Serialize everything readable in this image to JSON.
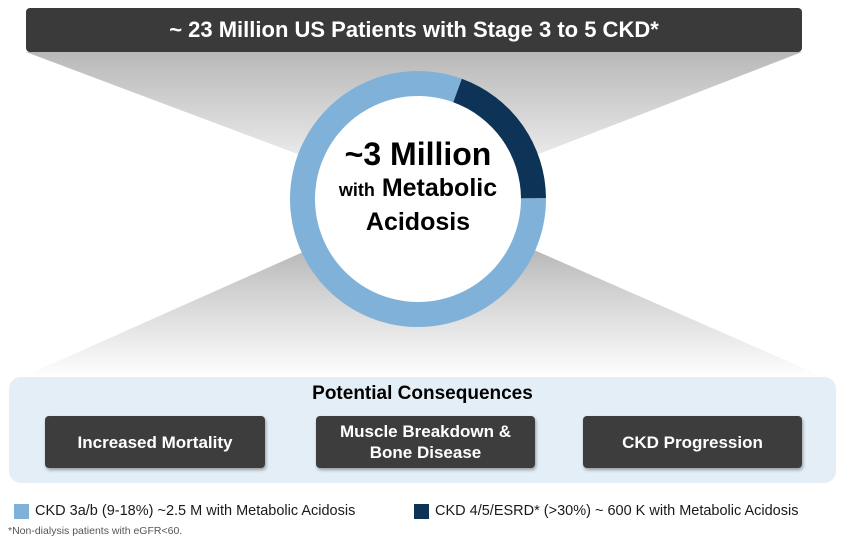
{
  "banner": {
    "title": "~ 23 Million US Patients with Stage 3 to 5 CKD*"
  },
  "chart_data": {
    "type": "pie",
    "variant": "donut",
    "center_text": {
      "line1": "~3 Million",
      "line2_small": "with",
      "line2": "Metabolic",
      "line3": "Acidosis"
    },
    "series": [
      {
        "name": "CKD 3a/b (9-18%)  ~2.5 M with Metabolic Acidosis",
        "value": 2.5,
        "color": "#7fb1d9"
      },
      {
        "name": "CKD 4/5/ESRD* (>30%) ~ 600 K with Metabolic Acidosis",
        "value": 0.6,
        "color": "#0d3457"
      }
    ]
  },
  "consequences": {
    "title": "Potential  Consequences",
    "items": [
      {
        "line1": "Increased Mortality",
        "line2": ""
      },
      {
        "line1": "Muscle Breakdown &",
        "line2": "Bone Disease"
      },
      {
        "line1": "CKD Progression",
        "line2": ""
      }
    ]
  },
  "legend": {
    "items": [
      {
        "label": "CKD 3a/b (9-18%)  ~2.5 M with Metabolic Acidosis",
        "color": "#7fb1d9"
      },
      {
        "label": "CKD 4/5/ESRD* (>30%) ~ 600 K with Metabolic Acidosis",
        "color": "#0d3457"
      }
    ]
  },
  "footnote": "*Non-dialysis patients with eGFR<60."
}
